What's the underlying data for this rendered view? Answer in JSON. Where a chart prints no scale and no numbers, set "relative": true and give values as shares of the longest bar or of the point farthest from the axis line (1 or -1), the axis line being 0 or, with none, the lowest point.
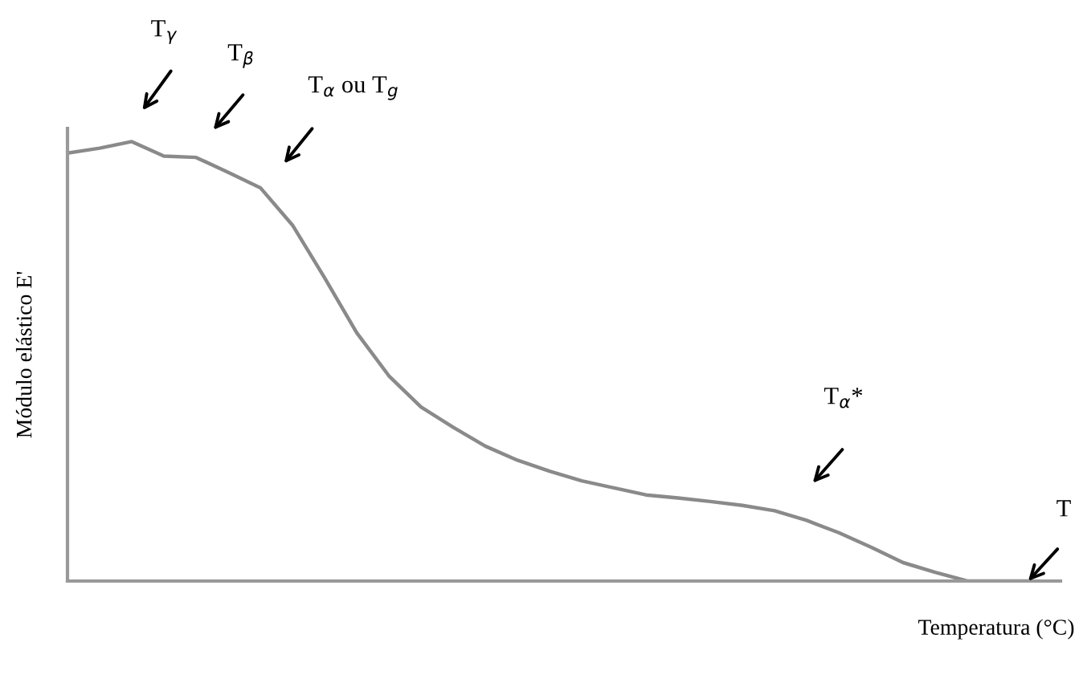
{
  "chart_data": {
    "type": "line",
    "relative": true,
    "xlabel": "Temperatura (°C)",
    "ylabel": "Módulo elástico E'",
    "categories": [
      null,
      null,
      null,
      null,
      null,
      null,
      null,
      null,
      null,
      null,
      null,
      null,
      null,
      null,
      null,
      null,
      null,
      null,
      null,
      null,
      null,
      null,
      null,
      null,
      null,
      null,
      null,
      null,
      null,
      null,
      null
    ],
    "series": [
      {
        "color": "#8a8a8a",
        "values": [
          0.974,
          0.985,
          1.0,
          0.967,
          0.964,
          0.93,
          0.895,
          0.81,
          0.69,
          0.565,
          0.467,
          0.396,
          0.35,
          0.307,
          0.275,
          0.25,
          0.228,
          0.212,
          0.196,
          0.189,
          0.181,
          0.172,
          0.16,
          0.138,
          0.11,
          0.077,
          0.042,
          0.02,
          0,
          0,
          0
        ]
      }
    ],
    "annotations": [
      "T$_{γ}$",
      "T$_{β}$",
      "T$_{α}$ ou T$_{g}$",
      "T$_{α}$*",
      "T"
    ],
    "marker": "none",
    "line_style": "solid"
  }
}
